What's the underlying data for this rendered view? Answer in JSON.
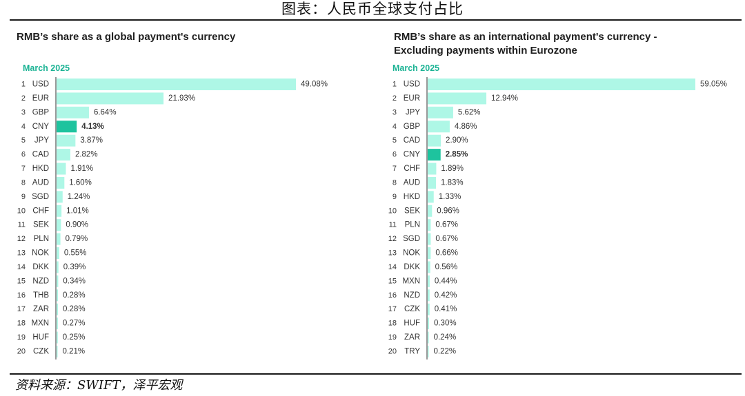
{
  "page": {
    "title": "图表：人民币全球支付占比",
    "source": "资料来源：SWIFT，泽平宏观"
  },
  "colors": {
    "bar": "#aef7e6",
    "highlight": "#1ec39e",
    "period": "#1bb394",
    "axis": "#555555",
    "text": "#333333"
  },
  "chart_data": [
    {
      "type": "bar",
      "orientation": "horizontal",
      "title": "RMB’s share as a global payment's currency",
      "subtitle": "March 2025",
      "highlight": "CNY",
      "value_suffix": "%",
      "xlim": [
        0,
        49.08
      ],
      "ranks": [
        1,
        2,
        3,
        4,
        5,
        6,
        7,
        8,
        9,
        10,
        11,
        12,
        13,
        14,
        15,
        16,
        17,
        18,
        19,
        20
      ],
      "categories": [
        "USD",
        "EUR",
        "GBP",
        "CNY",
        "JPY",
        "CAD",
        "HKD",
        "AUD",
        "SGD",
        "CHF",
        "SEK",
        "PLN",
        "NOK",
        "DKK",
        "NZD",
        "THB",
        "ZAR",
        "MXN",
        "HUF",
        "CZK"
      ],
      "values": [
        49.08,
        21.93,
        6.64,
        4.13,
        3.87,
        2.82,
        1.91,
        1.6,
        1.24,
        1.01,
        0.9,
        0.79,
        0.55,
        0.39,
        0.34,
        0.28,
        0.28,
        0.27,
        0.25,
        0.21
      ]
    },
    {
      "type": "bar",
      "orientation": "horizontal",
      "title": "RMB’s share as an international payment's currency -\nExcluding payments within Eurozone",
      "subtitle": "March 2025",
      "highlight": "CNY",
      "value_suffix": "%",
      "xlim": [
        0,
        59.05
      ],
      "ranks": [
        1,
        2,
        3,
        4,
        5,
        6,
        7,
        8,
        9,
        10,
        11,
        12,
        13,
        14,
        15,
        16,
        17,
        18,
        19,
        20
      ],
      "categories": [
        "USD",
        "EUR",
        "JPY",
        "GBP",
        "CAD",
        "CNY",
        "CHF",
        "AUD",
        "HKD",
        "SEK",
        "PLN",
        "SGD",
        "NOK",
        "DKK",
        "MXN",
        "NZD",
        "CZK",
        "HUF",
        "ZAR",
        "TRY"
      ],
      "values": [
        59.05,
        12.94,
        5.62,
        4.86,
        2.9,
        2.85,
        1.89,
        1.83,
        1.33,
        0.96,
        0.67,
        0.67,
        0.66,
        0.56,
        0.44,
        0.42,
        0.41,
        0.3,
        0.24,
        0.22
      ]
    }
  ]
}
